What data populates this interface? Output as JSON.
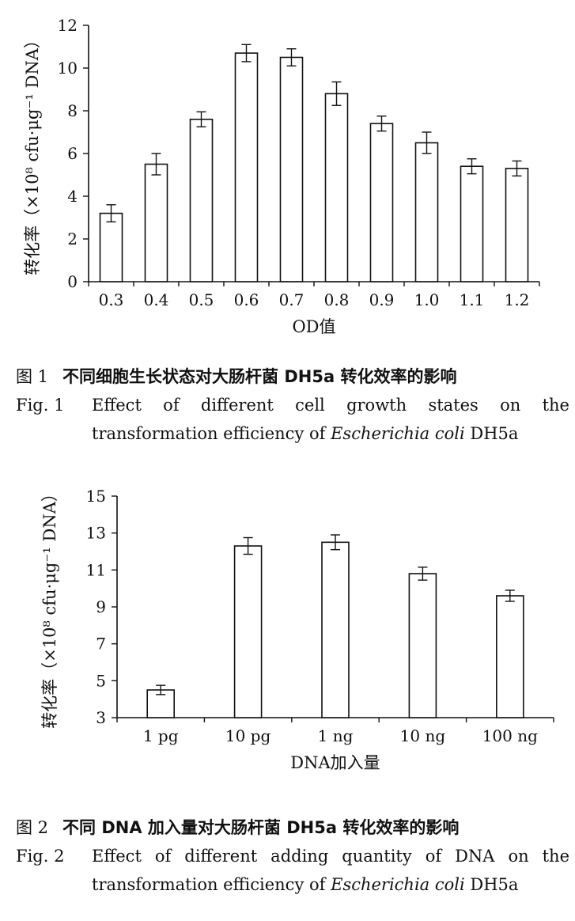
{
  "chart_data": [
    {
      "type": "bar",
      "ylabel": "转化率（×10⁸ cfu·μg⁻¹ DNA）",
      "xlabel": "OD值",
      "categories": [
        "0.3",
        "0.4",
        "0.5",
        "0.6",
        "0.7",
        "0.8",
        "0.9",
        "1.0",
        "1.1",
        "1.2"
      ],
      "values": [
        3.2,
        5.5,
        7.6,
        10.7,
        10.5,
        8.8,
        7.4,
        6.5,
        5.4,
        5.3
      ],
      "errors": [
        0.4,
        0.5,
        0.35,
        0.4,
        0.4,
        0.55,
        0.35,
        0.5,
        0.35,
        0.35
      ],
      "ylim": [
        0,
        12
      ],
      "yticks": [
        "0",
        "2",
        "4",
        "6",
        "8",
        "10",
        "12"
      ],
      "grid": false
    },
    {
      "type": "bar",
      "ylabel": "转化率（×10⁸ cfu·μg⁻¹ DNA）",
      "xlabel": "DNA加入量",
      "categories": [
        "1 pg",
        "10 pg",
        "1 ng",
        "10 ng",
        "100 ng"
      ],
      "values": [
        4.5,
        12.3,
        12.5,
        10.8,
        9.6
      ],
      "errors": [
        0.25,
        0.45,
        0.4,
        0.35,
        0.3
      ],
      "ylim": [
        3,
        15
      ],
      "yticks": [
        "3",
        "5",
        "7",
        "9",
        "11",
        "13",
        "15"
      ],
      "grid": false
    }
  ],
  "captions": [
    {
      "cn_num": "图 1",
      "cn_text": "不同细胞生长状态对大肠杆菌 DH5a 转化效率的影响",
      "en_num": "Fig. 1",
      "en_text_1": "Effect of different cell growth states on the transformation efficiency of",
      "en_italic": "Escherichia coli",
      "en_text_2": "DH5a"
    },
    {
      "cn_num": "图 2",
      "cn_text": "不同 DNA 加入量对大肠杆菌 DH5a 转化效率的影响",
      "en_num": "Fig. 2",
      "en_text_1": "Effect of different adding quantity of DNA on the transformation efficiency of",
      "en_italic": "Escherichia coli",
      "en_text_2": "DH5a"
    }
  ]
}
